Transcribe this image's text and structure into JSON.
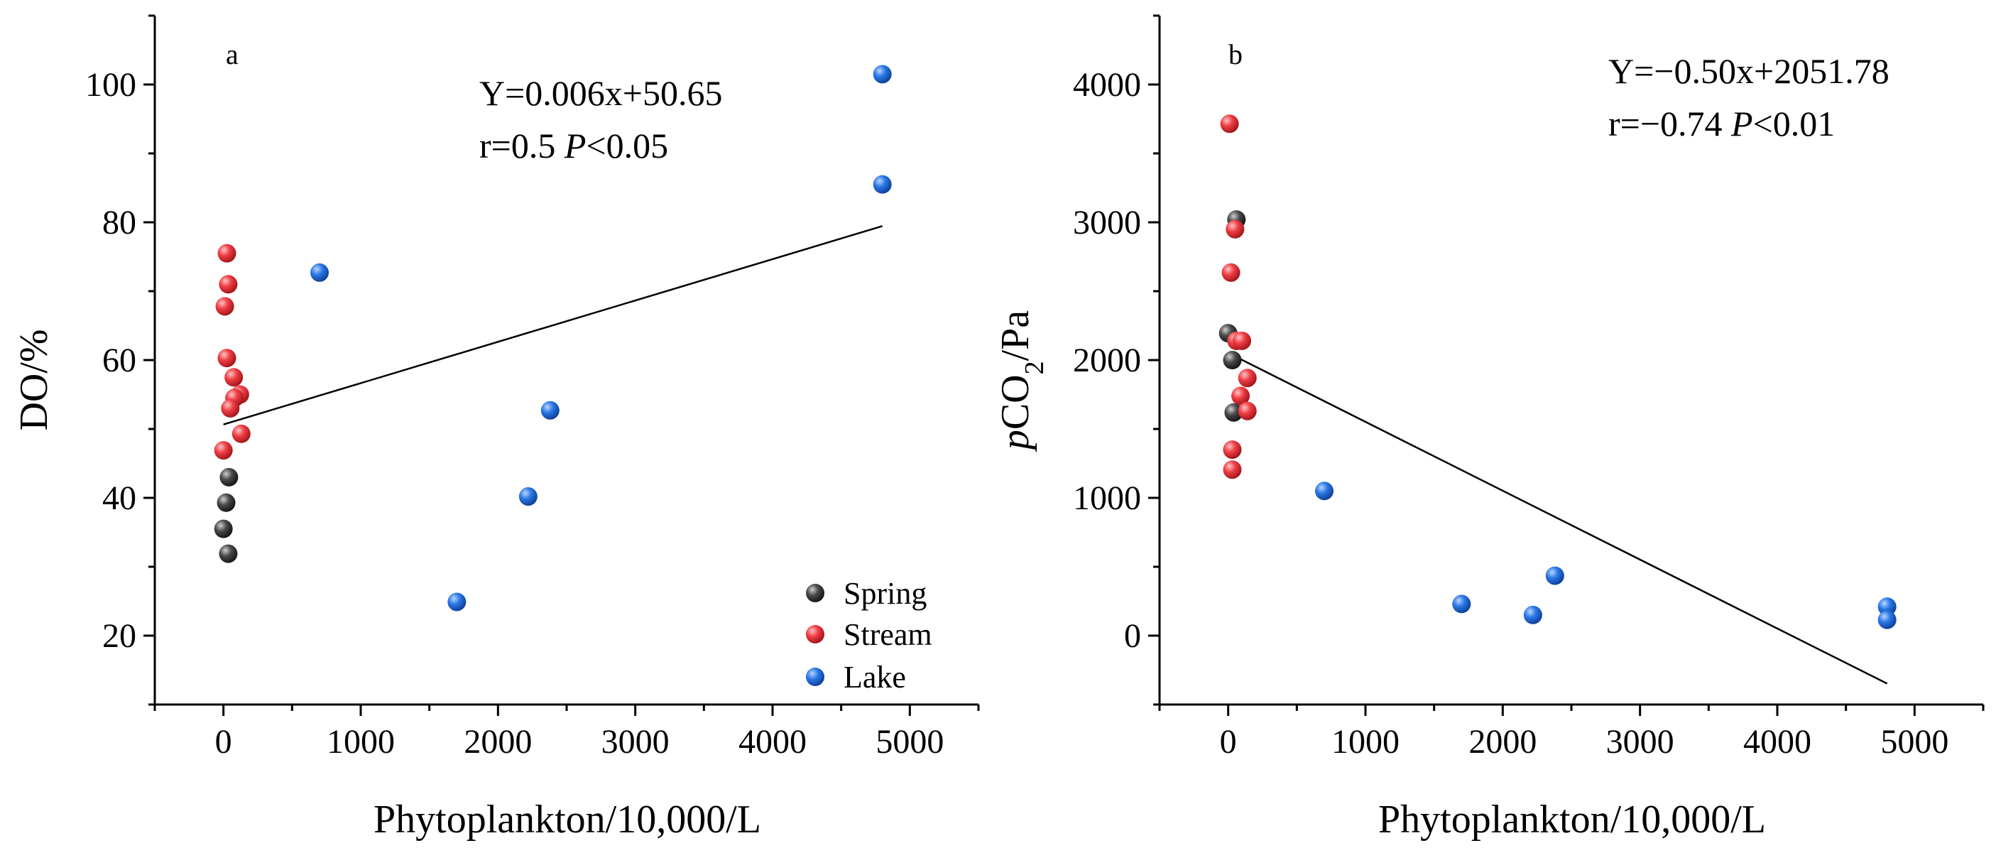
{
  "legend": {
    "Spring": {
      "label": "Spring",
      "color": "#3d3d3d"
    },
    "Stream": {
      "label": "Stream",
      "color": "#e8363b"
    },
    "Lake": {
      "label": "Lake",
      "color": "#1f6fe0"
    }
  },
  "chart_data": [
    {
      "type": "scatter",
      "panel_label": "a",
      "xlabel": "Phytoplankton/10,000/L",
      "ylabel": "DO/%",
      "xlim": [
        -500,
        5500
      ],
      "ylim": [
        10,
        110
      ],
      "xticks": [
        0,
        1000,
        2000,
        3000,
        4000,
        5000
      ],
      "yticks": [
        20,
        40,
        60,
        80,
        100
      ],
      "equation": "Y=0.006x+50.65",
      "stats": {
        "prefix": "r=0.5 ",
        "p": "P",
        "suffix": "<0.05"
      },
      "fit": {
        "slope": 0.006,
        "intercept": 50.65,
        "x_range": [
          0,
          4800
        ]
      },
      "legend_position": "bottom-right",
      "series": [
        {
          "name": "Spring",
          "points": [
            [
              40,
              43
            ],
            [
              20,
              39.3
            ],
            [
              0,
              35.5
            ],
            [
              35,
              31.9
            ]
          ]
        },
        {
          "name": "Stream",
          "points": [
            [
              25,
              75.5
            ],
            [
              35,
              71
            ],
            [
              10,
              67.8
            ],
            [
              25,
              60.3
            ],
            [
              75,
              57.5
            ],
            [
              120,
              55
            ],
            [
              80,
              54.5
            ],
            [
              50,
              53
            ],
            [
              130,
              49.3
            ],
            [
              0,
              46.9
            ]
          ]
        },
        {
          "name": "Lake",
          "points": [
            [
              4800,
              101.5
            ],
            [
              4800,
              85.5
            ],
            [
              700,
              72.7
            ],
            [
              2380,
              52.7
            ],
            [
              2220,
              40.2
            ],
            [
              1700,
              24.9
            ]
          ]
        }
      ]
    },
    {
      "type": "scatter",
      "panel_label": "b",
      "xlabel": "Phytoplankton/10,000/L",
      "ylabel": {
        "italic": "p",
        "base": "CO",
        "sub": "2",
        "suffix": "/Pa"
      },
      "xlim": [
        -500,
        5500
      ],
      "ylim": [
        -500,
        4500
      ],
      "xticks": [
        0,
        1000,
        2000,
        3000,
        4000,
        5000
      ],
      "yticks": [
        0,
        1000,
        2000,
        3000,
        4000
      ],
      "equation": "Y=−0.50x+2051.78",
      "stats": {
        "prefix": "r=−0.74 ",
        "p": "P",
        "suffix": "<0.01"
      },
      "fit": {
        "slope": -0.5,
        "intercept": 2051.78,
        "x_range": [
          0,
          4800
        ]
      },
      "series": [
        {
          "name": "Spring",
          "points": [
            [
              60,
              3020
            ],
            [
              0,
              2195
            ],
            [
              30,
              2000
            ],
            [
              40,
              1620
            ]
          ]
        },
        {
          "name": "Stream",
          "points": [
            [
              10,
              3715
            ],
            [
              50,
              2950
            ],
            [
              20,
              2635
            ],
            [
              60,
              2140
            ],
            [
              100,
              2140
            ],
            [
              140,
              1870
            ],
            [
              90,
              1740
            ],
            [
              140,
              1630
            ],
            [
              30,
              1350
            ],
            [
              30,
              1205
            ]
          ]
        },
        {
          "name": "Lake",
          "points": [
            [
              700,
              1050
            ],
            [
              2380,
              435
            ],
            [
              1700,
              230
            ],
            [
              2220,
              150
            ],
            [
              4800,
              210
            ],
            [
              4800,
              115
            ]
          ]
        }
      ]
    }
  ]
}
